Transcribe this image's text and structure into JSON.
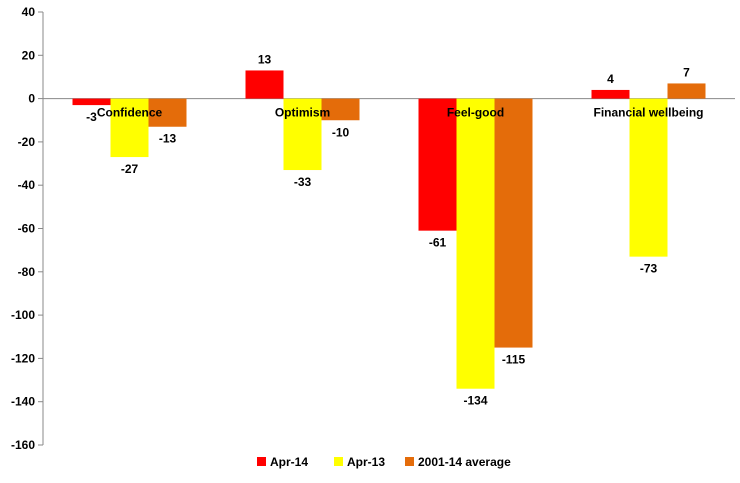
{
  "chart_data": {
    "type": "bar",
    "categories": [
      "Confidence",
      "Optimism",
      "Feel-good",
      "Financial wellbeing"
    ],
    "series": [
      {
        "name": "Apr-14",
        "color": "#ff0000",
        "values": [
          -3,
          13,
          -61,
          4
        ]
      },
      {
        "name": "Apr-13",
        "color": "#ffff00",
        "values": [
          -27,
          -33,
          -134,
          -73
        ]
      },
      {
        "name": "2001-14 average",
        "color": "#e46c0a",
        "values": [
          -13,
          -10,
          -115,
          7
        ]
      }
    ],
    "ylim": [
      -160,
      40
    ],
    "yticks": [
      40,
      20,
      0,
      -20,
      -40,
      -60,
      -80,
      -100,
      -120,
      -140,
      -160
    ],
    "ytick_labels": [
      "40",
      "20",
      "0",
      "-20",
      "-40",
      "-60",
      "-80",
      "-100",
      "-120",
      "-140",
      "-160"
    ],
    "grid": false,
    "legend_position": "bottom"
  }
}
